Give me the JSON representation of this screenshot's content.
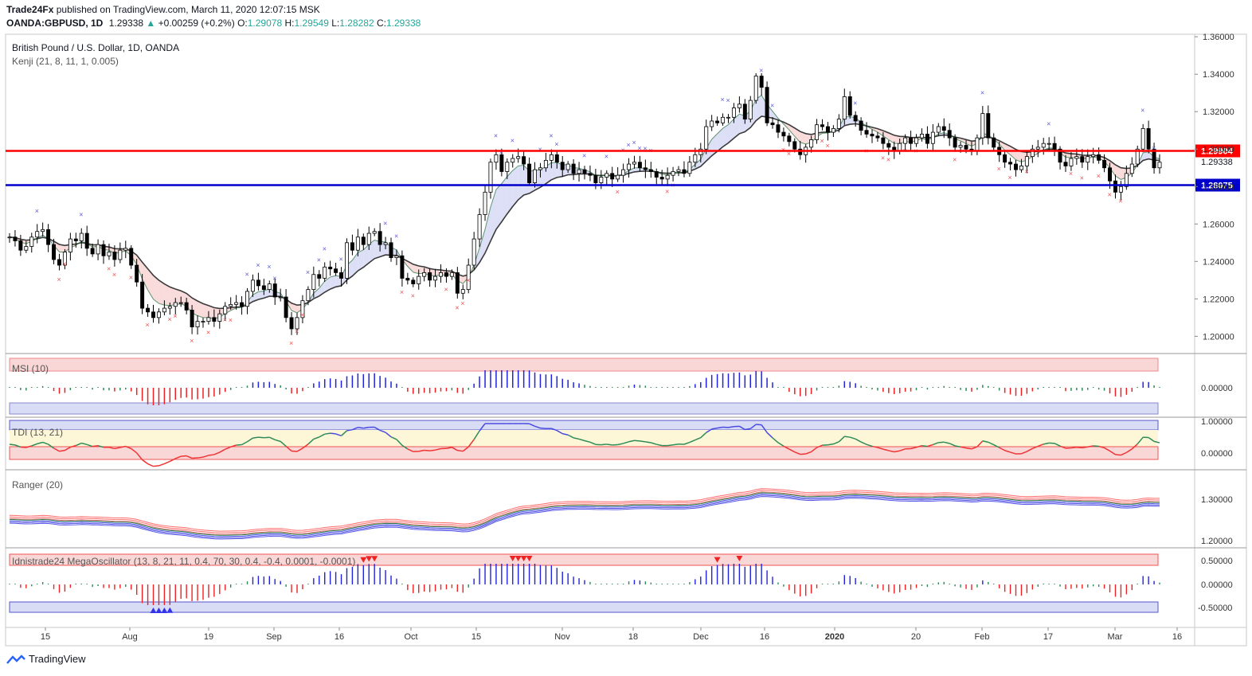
{
  "header": {
    "publisher": "Trade24Fx",
    "published_text": "published on TradingView.com, March 11, 2020 12:07:15 MSK",
    "symbol": "OANDA:GBPUSD, 1D",
    "last": "1.29338",
    "change": "+0.00259 (+0.2%)",
    "o_label": "O:",
    "o_value": "1.29078",
    "h_label": "H:",
    "h_value": "1.29549",
    "l_label": "L:",
    "l_value": "1.28282",
    "c_label": "C:",
    "c_value": "1.29338"
  },
  "legend": {
    "title": "British Pound / U.S. Dollar, 1D, OANDA",
    "study": "Kenji (21, 8, 11, 1, 0.005)"
  },
  "panes": {
    "msi": "MSI (10)",
    "tdi": "TDI (13, 21)",
    "ranger": "Ranger (20)",
    "mega": "Idnistrade24 MegaOscillator (13, 8, 21, 11, 0.4, 70, 30, 0.4, -0.4, 0.0001, -0.0001)"
  },
  "footer": {
    "brand": "TradingView"
  },
  "colors": {
    "up": "#26a69a",
    "red_line": "#ff0000",
    "blue_line": "#0000cc",
    "buy": "#5b5bd6",
    "sell": "#f05050",
    "candle": "#000000"
  },
  "chart_data": {
    "type": "candlestick",
    "title": "British Pound / U.S. Dollar, 1D, OANDA",
    "price_axis": {
      "ticks": [
        "1.36000",
        "1.34000",
        "1.32000",
        "1.30000",
        "1.28000",
        "1.26000",
        "1.24000",
        "1.22000",
        "1.20000"
      ],
      "range": [
        1.1925,
        1.3605
      ]
    },
    "time_axis": {
      "ticks": [
        "15",
        "Aug",
        "19",
        "Sep",
        "16",
        "Oct",
        "15",
        "Nov",
        "18",
        "Dec",
        "16",
        "2020",
        "20",
        "Feb",
        "17",
        "Mar",
        "16"
      ]
    },
    "levels": [
      {
        "label": "1.29904",
        "value": 1.29904,
        "color": "#ff0000"
      },
      {
        "label": "1.28075",
        "value": 1.28075,
        "color": "#0000cc"
      }
    ],
    "last_price_label": "1.29338",
    "closes": [
      1.253,
      1.251,
      1.246,
      1.248,
      1.253,
      1.256,
      1.257,
      1.249,
      1.241,
      1.238,
      1.245,
      1.252,
      1.251,
      1.255,
      1.247,
      1.244,
      1.249,
      1.243,
      1.245,
      1.241,
      1.246,
      1.247,
      1.238,
      1.229,
      1.215,
      1.213,
      1.21,
      1.213,
      1.215,
      1.216,
      1.218,
      1.218,
      1.214,
      1.205,
      1.208,
      1.208,
      1.21,
      1.208,
      1.212,
      1.216,
      1.217,
      1.218,
      1.216,
      1.224,
      1.23,
      1.227,
      1.225,
      1.228,
      1.221,
      1.221,
      1.21,
      1.204,
      1.21,
      1.219,
      1.225,
      1.233,
      1.231,
      1.237,
      1.236,
      1.234,
      1.231,
      1.25,
      1.246,
      1.253,
      1.249,
      1.255,
      1.256,
      1.249,
      1.25,
      1.242,
      1.243,
      1.231,
      1.23,
      1.228,
      1.232,
      1.234,
      1.23,
      1.232,
      1.234,
      1.232,
      1.234,
      1.223,
      1.225,
      1.238,
      1.252,
      1.265,
      1.277,
      1.293,
      1.297,
      1.288,
      1.293,
      1.295,
      1.296,
      1.292,
      1.282,
      1.289,
      1.29,
      1.294,
      1.297,
      1.293,
      1.289,
      1.292,
      1.287,
      1.289,
      1.287,
      1.286,
      1.282,
      1.285,
      1.287,
      1.284,
      1.286,
      1.289,
      1.292,
      1.293,
      1.29,
      1.289,
      1.288,
      1.285,
      1.284,
      1.286,
      1.288,
      1.289,
      1.287,
      1.293,
      1.297,
      1.3,
      1.312,
      1.315,
      1.314,
      1.317,
      1.317,
      1.322,
      1.324,
      1.316,
      1.326,
      1.339,
      1.333,
      1.314,
      1.313,
      1.309,
      1.307,
      1.304,
      1.3,
      1.297,
      1.301,
      1.305,
      1.313,
      1.312,
      1.309,
      1.311,
      1.316,
      1.328,
      1.318,
      1.315,
      1.31,
      1.308,
      1.307,
      1.306,
      1.303,
      1.301,
      1.299,
      1.303,
      1.306,
      1.303,
      1.306,
      1.308,
      1.303,
      1.309,
      1.312,
      1.31,
      1.306,
      1.301,
      1.302,
      1.3,
      1.299,
      1.306,
      1.319,
      1.306,
      1.301,
      1.297,
      1.293,
      1.292,
      1.289,
      1.291,
      1.296,
      1.3,
      1.301,
      1.303,
      1.303,
      1.3,
      1.293,
      1.291,
      1.295,
      1.296,
      1.293,
      1.296,
      1.297,
      1.294,
      1.29,
      1.283,
      1.277,
      1.28,
      1.287,
      1.292,
      1.3,
      1.311,
      1.3,
      1.29,
      1.293
    ]
  }
}
